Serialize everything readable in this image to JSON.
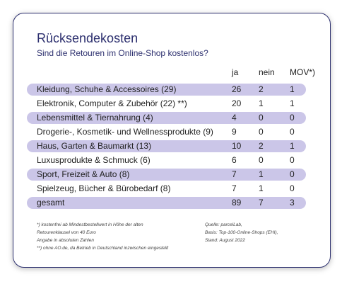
{
  "header": {
    "title": "Rücksendekosten",
    "subtitle": "Sind die Retouren im Online-Shop kostenlos?"
  },
  "table": {
    "columns": [
      "ja",
      "nein",
      "MOV*)"
    ],
    "rows": [
      [
        "Kleidung, Schuhe & Accessoires (29)",
        26,
        2,
        1
      ],
      [
        "Elektronik, Computer & Zubehör (22) **)",
        20,
        1,
        1
      ],
      [
        "Lebensmittel & Tiernahrung (4)",
        4,
        0,
        0
      ],
      [
        "Drogerie-, Kosmetik- und Wellnessprodukte (9)",
        9,
        0,
        0
      ],
      [
        "Haus, Garten & Baumarkt (13)",
        10,
        2,
        1
      ],
      [
        "Luxusprodukte & Schmuck (6)",
        6,
        0,
        0
      ],
      [
        "Sport, Freizeit & Auto (8)",
        7,
        1,
        0
      ],
      [
        "Spielzeug, Bücher & Bürobedarf (8)",
        7,
        1,
        0
      ],
      [
        "gesamt",
        89,
        7,
        3
      ]
    ]
  },
  "footnotes": {
    "left": [
      "*) kostenfrei ab Mindestbestellwert in Höhe der alten",
      "Retourenklausel von 40 Euro",
      "Angabe in absoluten Zahlen",
      "**) ohne AO.de, da Betrieb in Deutschland inzwischen eingestellt"
    ],
    "right": [
      "Quelle: parcelLab,",
      "Basis: Top-100-Online-Shops (EHI),",
      "Stand: August 2022"
    ]
  }
}
